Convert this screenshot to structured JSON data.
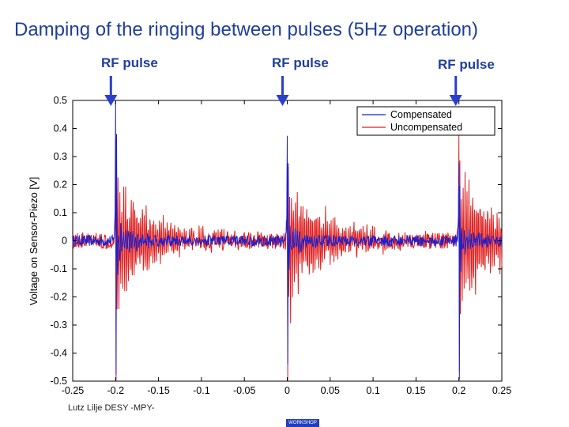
{
  "slide": {
    "title": "Damping of the ringing between pulses (5Hz operation)",
    "footer_author": "Lutz Lilje   DESY -MPY-",
    "footer_logo": "WORKSHOP"
  },
  "annotations": [
    {
      "text": "RF pulse",
      "x": -0.2
    },
    {
      "text": "RF pulse",
      "x": 0.0
    },
    {
      "text": "RF pulse",
      "x": 0.2
    }
  ],
  "colors": {
    "compensated": "#1f1fcc",
    "uncompensated": "#e01f1f",
    "arrow": "#2a3fcc",
    "title": "#1f3f99"
  },
  "chart_data": {
    "type": "line",
    "title": "",
    "xlabel": "",
    "ylabel": "Voltage on Sensor-Piezo [V]",
    "xlim": [
      -0.25,
      0.25
    ],
    "ylim": [
      -0.5,
      0.5
    ],
    "grid": false,
    "legend_position": "top-right",
    "x_tick_labels": [
      "-0.25",
      "-0.2",
      "-0.15",
      "-0.1",
      "-0.05",
      "0",
      "0.05",
      "0.1",
      "0.15",
      "0.2",
      "0.25"
    ],
    "y_tick_labels": [
      "0.5",
      "0.4",
      "0.3",
      "0.2",
      "0.1",
      "0",
      "-0.1",
      "-0.2",
      "-0.3",
      "-0.4",
      "-0.5"
    ],
    "pulse_times": [
      -0.2,
      0.0,
      0.2
    ],
    "series": [
      {
        "name": "Compensated",
        "baseline_noise": 0.02,
        "pulses": [
          {
            "t0": -0.2,
            "peak": 0.5,
            "trough": -0.32,
            "ring_amp": 0.06,
            "decay": 0.018
          },
          {
            "t0": 0.0,
            "peak": 0.36,
            "trough": -0.3,
            "ring_amp": 0.05,
            "decay": 0.016
          },
          {
            "t0": 0.2,
            "peak": 0.26,
            "trough": -0.34,
            "ring_amp": 0.05,
            "decay": 0.016
          }
        ]
      },
      {
        "name": "Uncompensated",
        "baseline_noise": 0.03,
        "pulses": [
          {
            "t0": -0.2,
            "peak": 0.36,
            "trough": -0.35,
            "ring_amp": 0.2,
            "decay": 0.045
          },
          {
            "t0": 0.0,
            "peak": 0.31,
            "trough": -0.41,
            "ring_amp": 0.2,
            "decay": 0.045
          },
          {
            "t0": 0.2,
            "peak": 0.36,
            "trough": -0.32,
            "ring_amp": 0.22,
            "decay": 0.045
          }
        ]
      }
    ]
  }
}
